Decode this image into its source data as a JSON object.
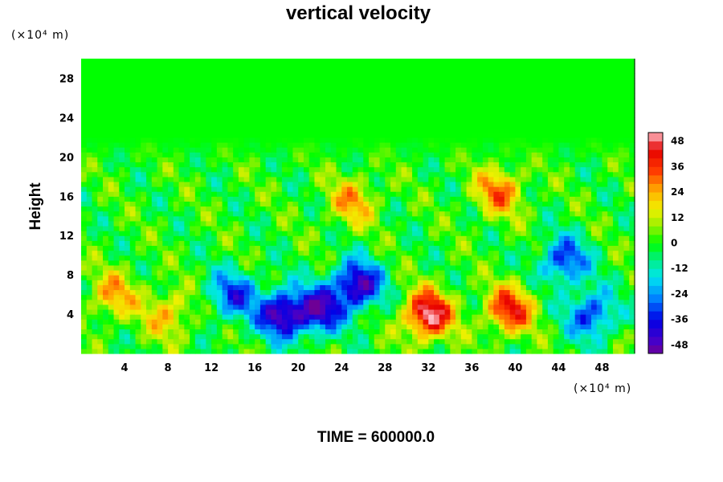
{
  "chart_data": {
    "type": "heatmap",
    "title": "vertical velocity",
    "ylabel": "Height",
    "x_unit": "(×10⁴ m)",
    "y_unit": "(×10⁴ m)",
    "time_label": "TIME = 600000.0",
    "xlim": [
      0,
      51
    ],
    "ylim": [
      0,
      30
    ],
    "x_ticks": [
      "4",
      "8",
      "12",
      "16",
      "20",
      "24",
      "28",
      "32",
      "36",
      "40",
      "44",
      "48"
    ],
    "y_ticks": [
      "4",
      "8",
      "12",
      "16",
      "20",
      "24",
      "28"
    ],
    "colorbar": {
      "range": [
        -52,
        52
      ],
      "labels": [
        "48",
        "36",
        "24",
        "12",
        "0",
        "-12",
        "-24",
        "-36",
        "-48"
      ]
    },
    "features": [
      {
        "x": 32,
        "y": 4,
        "value": 52
      },
      {
        "x": 39.5,
        "y": 4.5,
        "value": 40
      },
      {
        "x": 38.5,
        "y": 16.5,
        "value": 30
      },
      {
        "x": 22,
        "y": 4.5,
        "value": -42
      },
      {
        "x": 18.5,
        "y": 4,
        "value": -48
      },
      {
        "x": 25.5,
        "y": 7,
        "value": -48
      },
      {
        "x": 14,
        "y": 6,
        "value": -32
      },
      {
        "x": 47,
        "y": 4,
        "value": -34
      },
      {
        "x": 44.5,
        "y": 9.5,
        "value": -34
      },
      {
        "x": 8,
        "y": 4,
        "value": 22
      },
      {
        "x": 3,
        "y": 6,
        "value": 24
      },
      {
        "x": 25,
        "y": 15.5,
        "value": 24
      }
    ]
  }
}
